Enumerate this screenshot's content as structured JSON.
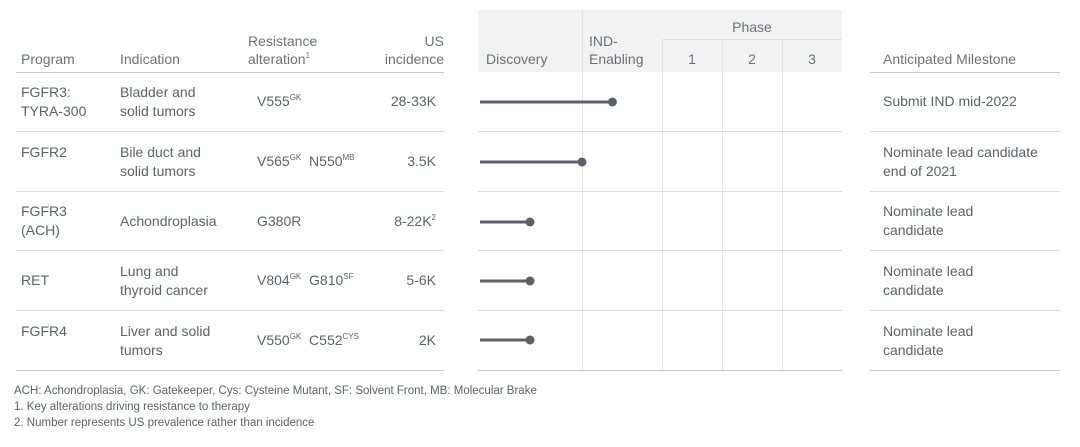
{
  "headers": {
    "program": "Program",
    "indication": "Indication",
    "resistance_line1": "Resistance",
    "resistance_line2": "alteration",
    "resistance_sup": "1",
    "us_line1": "US",
    "us_line2": "incidence",
    "discovery": "Discovery",
    "ind_line1": "IND-",
    "ind_line2": "Enabling",
    "phase": "Phase",
    "phase1": "1",
    "phase2": "2",
    "phase3": "3",
    "milestone": "Anticipated Milestone"
  },
  "rows": [
    {
      "program_l1": "FGFR3:",
      "program_l2": "TYRA-300",
      "indication_l1": "Bladder and",
      "indication_l2": "solid tumors",
      "alt1": "V555",
      "alt1_sup": "GK",
      "alt2": "",
      "alt2_sup": "",
      "incidence": "28-33K",
      "incidence_sup": "",
      "milestone_l1": "Submit IND mid-2022",
      "milestone_l2": ""
    },
    {
      "program_l1": "FGFR2",
      "program_l2": "",
      "indication_l1": "Bile duct and",
      "indication_l2": "solid tumors",
      "alt1": "V565",
      "alt1_sup": "GK",
      "alt2": "N550",
      "alt2_sup": "MB",
      "incidence": "3.5K",
      "incidence_sup": "",
      "milestone_l1": "Nominate lead candidate",
      "milestone_l2": "end of 2021"
    },
    {
      "program_l1": "FGFR3",
      "program_l2": "(ACH)",
      "indication_l1": "Achondroplasia",
      "indication_l2": "",
      "alt1": "G380R",
      "alt1_sup": "",
      "alt2": "",
      "alt2_sup": "",
      "incidence": "8-22K",
      "incidence_sup": "2",
      "milestone_l1": "Nominate lead",
      "milestone_l2": "candidate"
    },
    {
      "program_l1": "RET",
      "program_l2": "",
      "indication_l1": "Lung and",
      "indication_l2": "thyroid cancer",
      "alt1": "V804",
      "alt1_sup": "GK",
      "alt2": "G810",
      "alt2_sup": "SF",
      "incidence": "5-6K",
      "incidence_sup": "",
      "milestone_l1": "Nominate lead",
      "milestone_l2": "candidate"
    },
    {
      "program_l1": "FGFR4",
      "program_l2": "",
      "indication_l1": "Liver and solid",
      "indication_l2": "tumors",
      "alt1": "V550",
      "alt1_sup": "GK",
      "alt2": "C552",
      "alt2_sup": "CYS",
      "incidence": "2K",
      "incidence_sup": "",
      "milestone_l1": "Nominate lead",
      "milestone_l2": "candidate"
    }
  ],
  "chart_data": {
    "type": "bar",
    "stages": [
      "Discovery",
      "IND-Enabling",
      "1",
      "2",
      "3"
    ],
    "categories": [
      "FGFR3: TYRA-300",
      "FGFR2",
      "FGFR3 (ACH)",
      "RET",
      "FGFR4"
    ],
    "progress_stage_fraction": [
      1.38,
      1.0,
      0.5,
      0.5,
      0.5
    ],
    "colors": {
      "bar": "#5a6169",
      "grid": "#e2e2e2",
      "header_bg": "#f2f2f2"
    }
  },
  "footnotes": {
    "abbrev": "ACH: Achondroplasia, GK: Gatekeeper, Cys: Cysteine Mutant, SF: Solvent Front, MB: Molecular Brake",
    "note1": "1.  Key alterations driving resistance to therapy",
    "note2": "2.  Number represents US prevalence rather than incidence"
  }
}
